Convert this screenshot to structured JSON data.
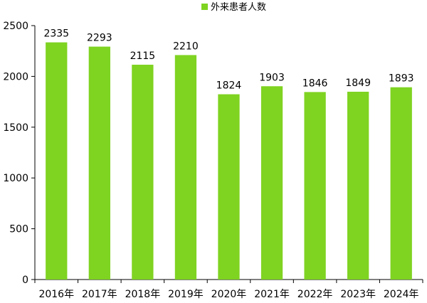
{
  "chart_data": {
    "type": "bar",
    "categories": [
      "2016年",
      "2017年",
      "2018年",
      "2019年",
      "2020年",
      "2021年",
      "2022年",
      "2023年",
      "2024年"
    ],
    "series": [
      {
        "name": "外来患者人数",
        "values": [
          2335,
          2293,
          2115,
          2210,
          1824,
          1903,
          1846,
          1849,
          1893
        ],
        "color": "#7FD321"
      }
    ],
    "ylim": [
      0,
      2500
    ],
    "yticks": [
      0,
      500,
      1000,
      1500,
      2000,
      2500
    ],
    "data_labels": true,
    "legend": "top-center",
    "grid": false
  }
}
